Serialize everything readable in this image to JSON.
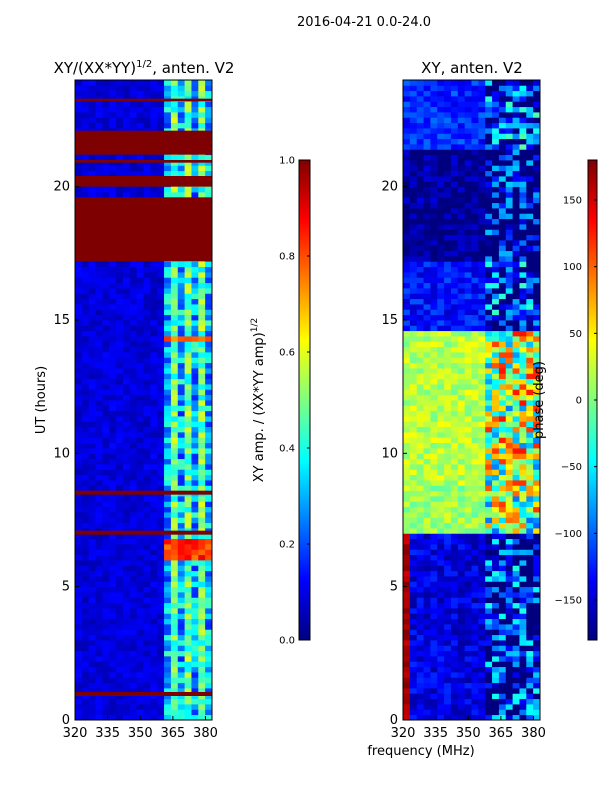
{
  "figure": {
    "suptitle": "2016-04-21 0.0-24.0",
    "shared_xlabel": "frequency (MHz)"
  },
  "colors": {
    "jet_stops": [
      "#00007f",
      "#0000ff",
      "#007fff",
      "#00ffff",
      "#7fff7f",
      "#ffff00",
      "#ff7f00",
      "#ff0000",
      "#7f0000"
    ]
  },
  "chart_data": [
    {
      "type": "heatmap",
      "title_base": "XY/(XX*YY)",
      "title_exponent": "1/2",
      "title_suffix": ", anten. V2",
      "xlabel": "",
      "ylabel": "UT (hours)",
      "xlim": [
        320,
        383
      ],
      "ylim": [
        0,
        24
      ],
      "xticks": [
        320,
        335,
        350,
        365,
        380
      ],
      "yticks": [
        0,
        5,
        10,
        15,
        20
      ],
      "colorbar": {
        "label_base": "XY amp. / (XX*YY amp)",
        "label_exponent": "1/2",
        "range": [
          0.0,
          1.0
        ],
        "ticks": [
          "0.0",
          "0.2",
          "0.4",
          "0.6",
          "0.8",
          "1.0"
        ],
        "tick_values": [
          0.0,
          0.2,
          0.4,
          0.6,
          0.8,
          1.0
        ]
      },
      "background_value": 0.05,
      "bright_freq_range_MHz": [
        360,
        383
      ],
      "flagged_time_bands_hours": [
        [
          0.9,
          1.05
        ],
        [
          6.95,
          7.1
        ],
        [
          8.45,
          8.6
        ],
        [
          17.2,
          19.6
        ],
        [
          20.0,
          20.4
        ],
        [
          20.9,
          21.0
        ],
        [
          21.2,
          22.1
        ],
        [
          23.2,
          23.3
        ]
      ],
      "bright_time_events_hours": [
        [
          6.1,
          6.8,
          0.75
        ],
        [
          14.2,
          14.4,
          0.7
        ]
      ]
    },
    {
      "type": "heatmap",
      "title": "XY, anten. V2",
      "xlabel": "",
      "ylabel": "",
      "xlim": [
        320,
        383
      ],
      "ylim": [
        0,
        24
      ],
      "xticks": [
        320,
        335,
        350,
        365,
        380
      ],
      "yticks": [
        0,
        5,
        10,
        15,
        20
      ],
      "colorbar": {
        "label": "phase (deg)",
        "range": [
          -180,
          180
        ],
        "ticks": [
          "−150",
          "−100",
          "−50",
          "0",
          "50",
          "100",
          "150"
        ],
        "tick_values": [
          -150,
          -100,
          -50,
          0,
          50,
          100,
          150
        ]
      },
      "regions": [
        {
          "time_hours": [
            0.0,
            7.1
          ],
          "phase_deg": -145
        },
        {
          "time_hours": [
            7.1,
            8.8
          ],
          "phase_deg": 10
        },
        {
          "time_hours": [
            8.8,
            14.6
          ],
          "phase_deg": 20
        },
        {
          "time_hours": [
            14.6,
            17.2
          ],
          "phase_deg": -130
        },
        {
          "time_hours": [
            17.2,
            19.4
          ],
          "phase_deg": -175
        },
        {
          "time_hours": [
            19.4,
            21.3
          ],
          "phase_deg": -170
        },
        {
          "time_hours": [
            21.3,
            24.0
          ],
          "phase_deg": -120
        }
      ],
      "bright_freq_range_MHz": [
        357,
        383
      ],
      "rfi_channel_MHz": 321
    }
  ]
}
